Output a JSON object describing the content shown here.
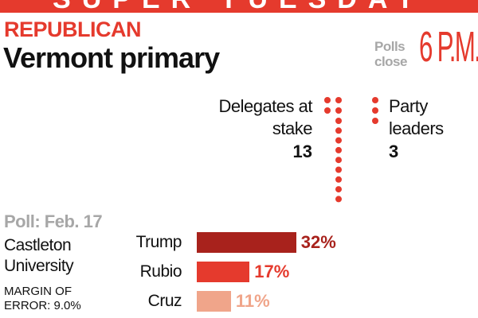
{
  "banner": {
    "text": "SUPER TUESDAY"
  },
  "header": {
    "party": "REPUBLICAN",
    "race": "Vermont primary"
  },
  "polls_close": {
    "label": "Polls close",
    "time": "6 P.M."
  },
  "delegates": {
    "label": "Delegates at stake",
    "count": "13",
    "count_value": 13
  },
  "party_leaders": {
    "label": "Party leaders",
    "count": "3",
    "count_value": 3
  },
  "poll": {
    "date": "Poll: Feb. 17",
    "pollster": "Castleton University",
    "margin": "MARGIN OF ERROR: 9.0%"
  },
  "chart_data": {
    "type": "bar",
    "categories": [
      "Trump",
      "Rubio",
      "Cruz"
    ],
    "values": [
      32,
      17,
      11
    ],
    "value_labels": [
      "32%",
      "17%",
      "11%"
    ],
    "colors": [
      "#a8221c",
      "#e53a2d",
      "#f0a58a"
    ]
  },
  "colors": {
    "accent": "#e53a2d",
    "muted": "#a7a7a7",
    "dot": "#e53a2d"
  }
}
